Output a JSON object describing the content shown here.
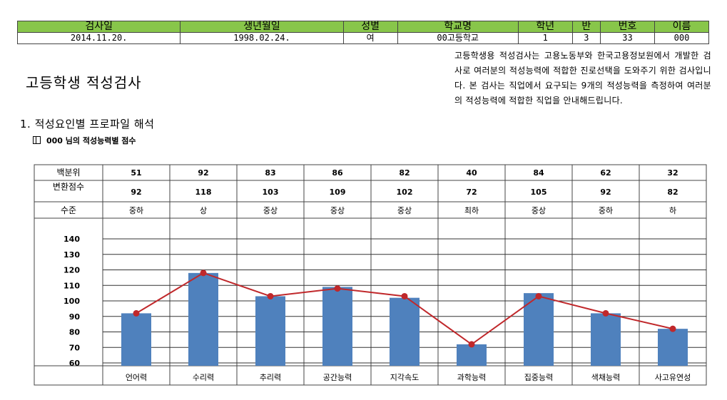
{
  "header": {
    "columns": [
      "검사일",
      "생년월일",
      "성별",
      "학교명",
      "학년",
      "반",
      "번호",
      "이름"
    ],
    "values": [
      "2014.11.20.",
      "1998.02.24.",
      "여",
      "00고등학교",
      "1",
      "3",
      "33",
      "000"
    ]
  },
  "description": "고등학생용 적성검사는 고용노동부와 한국고용정보원에서 개발한 검사로 여러분의 적성능력에 적합한 진로선택을 도와주기 위한 검사입니다. 본 검사는 직업에서 요구되는 9개의 적성능력을 측정하여 여러분의 적성능력에 적합한 직업을 안내해드립니다.",
  "title": "고등학생 적성검사",
  "section": "1. 적성요인별 프로파일 해석",
  "subsection": "000 님의 적성능력별 점수",
  "score_table": {
    "row_labels": [
      "백분위",
      "변환점수",
      "수준"
    ],
    "percentile": [
      "51",
      "92",
      "83",
      "86",
      "82",
      "40",
      "84",
      "62",
      "32"
    ],
    "converted": [
      "92",
      "118",
      "103",
      "109",
      "102",
      "72",
      "105",
      "92",
      "82"
    ],
    "level": [
      "중하",
      "상",
      "중상",
      "중상",
      "중상",
      "최하",
      "중상",
      "중하",
      "하"
    ]
  },
  "chart_data": {
    "type": "bar",
    "categories": [
      "언어력",
      "수리력",
      "추리력",
      "공간능력",
      "지각속도",
      "과학능력",
      "집중능력",
      "색채능력",
      "사고유연성"
    ],
    "series": [
      {
        "values": [
          92,
          118,
          103,
          109,
          102,
          72,
          105,
          92,
          82
        ],
        "type": "bar",
        "color": "#4f81bd"
      },
      {
        "values": [
          92,
          118,
          103,
          108,
          103,
          72,
          103,
          92,
          82
        ],
        "type": "line",
        "color": "#c0282b"
      }
    ],
    "ylim": [
      60,
      140
    ],
    "yticks": [
      60,
      70,
      80,
      90,
      100,
      110,
      120,
      130,
      140
    ],
    "grid": true
  }
}
